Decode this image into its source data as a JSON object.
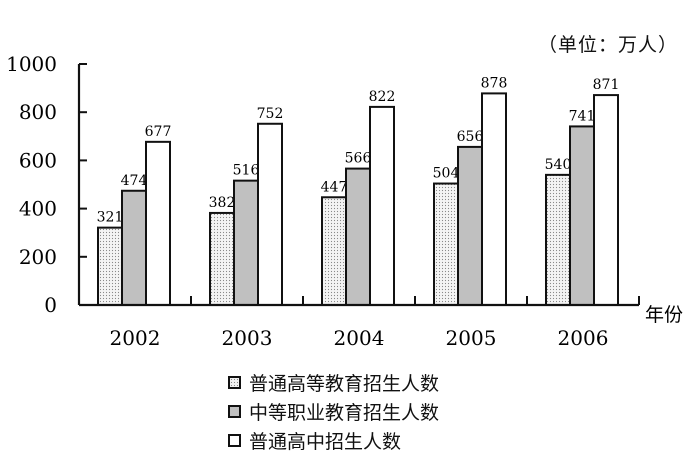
{
  "unit_label": "（单位：万人）",
  "x_axis_label": "年份",
  "legend": [
    {
      "label": "普通高等教育招生人数",
      "fill": "dotted"
    },
    {
      "label": "中等职业教育招生人数",
      "fill": "#c0c0c0"
    },
    {
      "label": "普通高中招生人数",
      "fill": "#ffffff"
    }
  ],
  "chart_data": {
    "type": "bar",
    "title": "",
    "xlabel": "年份",
    "ylabel": "（单位：万人）",
    "categories": [
      "2002",
      "2003",
      "2004",
      "2005",
      "2006"
    ],
    "series": [
      {
        "name": "普通高等教育招生人数",
        "values": [
          321,
          382,
          447,
          504,
          540
        ]
      },
      {
        "name": "中等职业教育招生人数",
        "values": [
          474,
          516,
          566,
          656,
          741
        ]
      },
      {
        "name": "普通高中招生人数",
        "values": [
          677,
          752,
          822,
          878,
          871
        ]
      }
    ],
    "yticks": [
      0,
      200,
      400,
      600,
      800,
      1000
    ],
    "ylim": [
      0,
      1000
    ],
    "grid": false,
    "legend_position": "bottom"
  }
}
